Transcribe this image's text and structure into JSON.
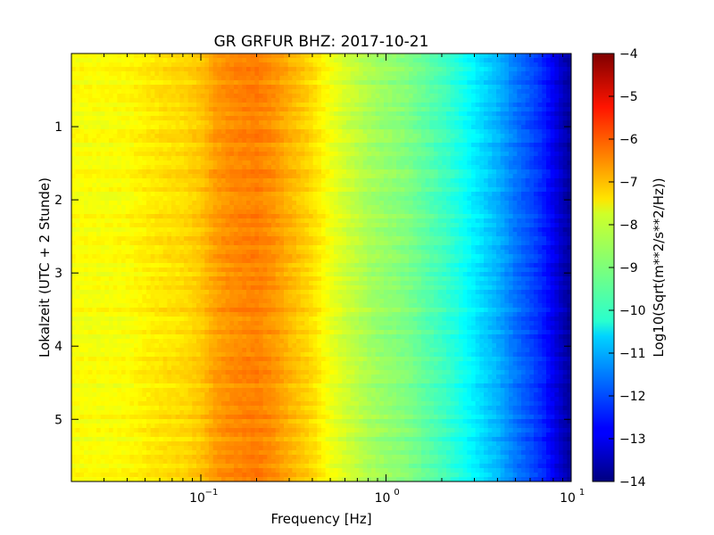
{
  "chart_data": {
    "type": "heatmap",
    "title": "GR GRFUR BHZ: 2017-10-21",
    "xlabel": "Frequency [Hz]",
    "ylabel": "Lokalzeit (UTC + 2 Stunde)",
    "colorbar_label": "Log10(Sqrt(m**2/s**2/Hz))",
    "x_scale": "log",
    "xlim": [
      0.02,
      10
    ],
    "ylim": [
      5.85,
      0
    ],
    "y_inverted": true,
    "x_ticks": [
      {
        "value": 0.1,
        "base": "10",
        "exp": "−1"
      },
      {
        "value": 1,
        "base": "10",
        "exp": "0"
      },
      {
        "value": 10,
        "base": "10",
        "exp": "1"
      }
    ],
    "y_ticks": [
      {
        "value": 1,
        "label": "1"
      },
      {
        "value": 2,
        "label": "2"
      },
      {
        "value": 3,
        "label": "3"
      },
      {
        "value": 4,
        "label": "4"
      },
      {
        "value": 5,
        "label": "5"
      }
    ],
    "colorbar": {
      "range": [
        -14,
        -4
      ],
      "ticks": [
        "−4",
        "−5",
        "−6",
        "−7",
        "−8",
        "−9",
        "−10",
        "−11",
        "−12",
        "−13",
        "−14"
      ],
      "tick_values": [
        -4,
        -5,
        -6,
        -7,
        -8,
        -9,
        -10,
        -11,
        -12,
        -13,
        -14
      ],
      "colormap": "jet"
    },
    "spectrum_profile": {
      "frequency_hz": [
        0.02,
        0.03,
        0.04,
        0.06,
        0.08,
        0.1,
        0.12,
        0.15,
        0.2,
        0.25,
        0.3,
        0.4,
        0.5,
        0.6,
        0.7,
        0.8,
        1.0,
        1.3,
        1.6,
        2.0,
        2.5,
        3.0,
        4.0,
        5.0,
        6.0,
        7.0,
        8.0,
        9.0,
        10.0
      ],
      "log10_amplitude": [
        -7.8,
        -7.8,
        -7.75,
        -7.5,
        -7.4,
        -7.2,
        -6.8,
        -6.6,
        -6.5,
        -6.7,
        -7.0,
        -7.4,
        -7.9,
        -8.2,
        -8.4,
        -8.6,
        -8.8,
        -9.0,
        -9.3,
        -9.6,
        -10.0,
        -10.4,
        -11.0,
        -11.6,
        -12.0,
        -12.4,
        -12.9,
        -13.4,
        -13.8
      ]
    },
    "grid": false,
    "legend": "none"
  }
}
